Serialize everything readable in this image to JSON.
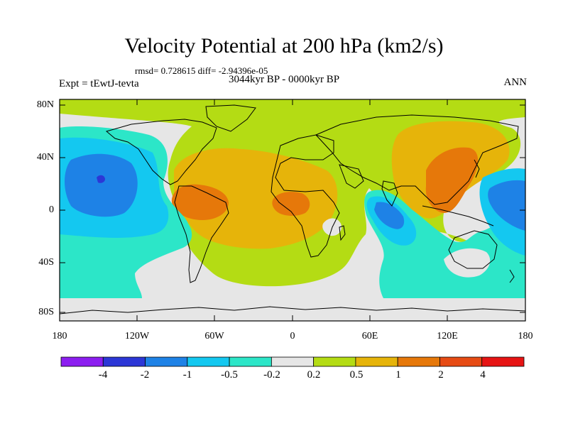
{
  "title": "Velocity Potential at 200 hPa (km2/s)",
  "stats": "rmsd= 0.728615  diff= -2.94396e-05",
  "expt": "Expt = tEwtJ-tevta",
  "period": "3044kyr BP - 0000kyr BP",
  "season": "ANN",
  "lat_labels": [
    "80N",
    "40N",
    "0",
    "40S",
    "80S"
  ],
  "lon_labels": [
    "180",
    "120W",
    "60W",
    "0",
    "60E",
    "120E",
    "180"
  ],
  "colorbar": {
    "labels": [
      "-4",
      "-2",
      "-1",
      "-0.5",
      "-0.2",
      "0.2",
      "0.5",
      "1",
      "2",
      "4"
    ],
    "colors": [
      "#8c1ef0",
      "#2c37d6",
      "#1e82e6",
      "#14c8f0",
      "#2ce6c8",
      "#e6e6e6",
      "#b4dc14",
      "#e6b40a",
      "#e6780a",
      "#e64b14",
      "#e61414"
    ]
  }
}
